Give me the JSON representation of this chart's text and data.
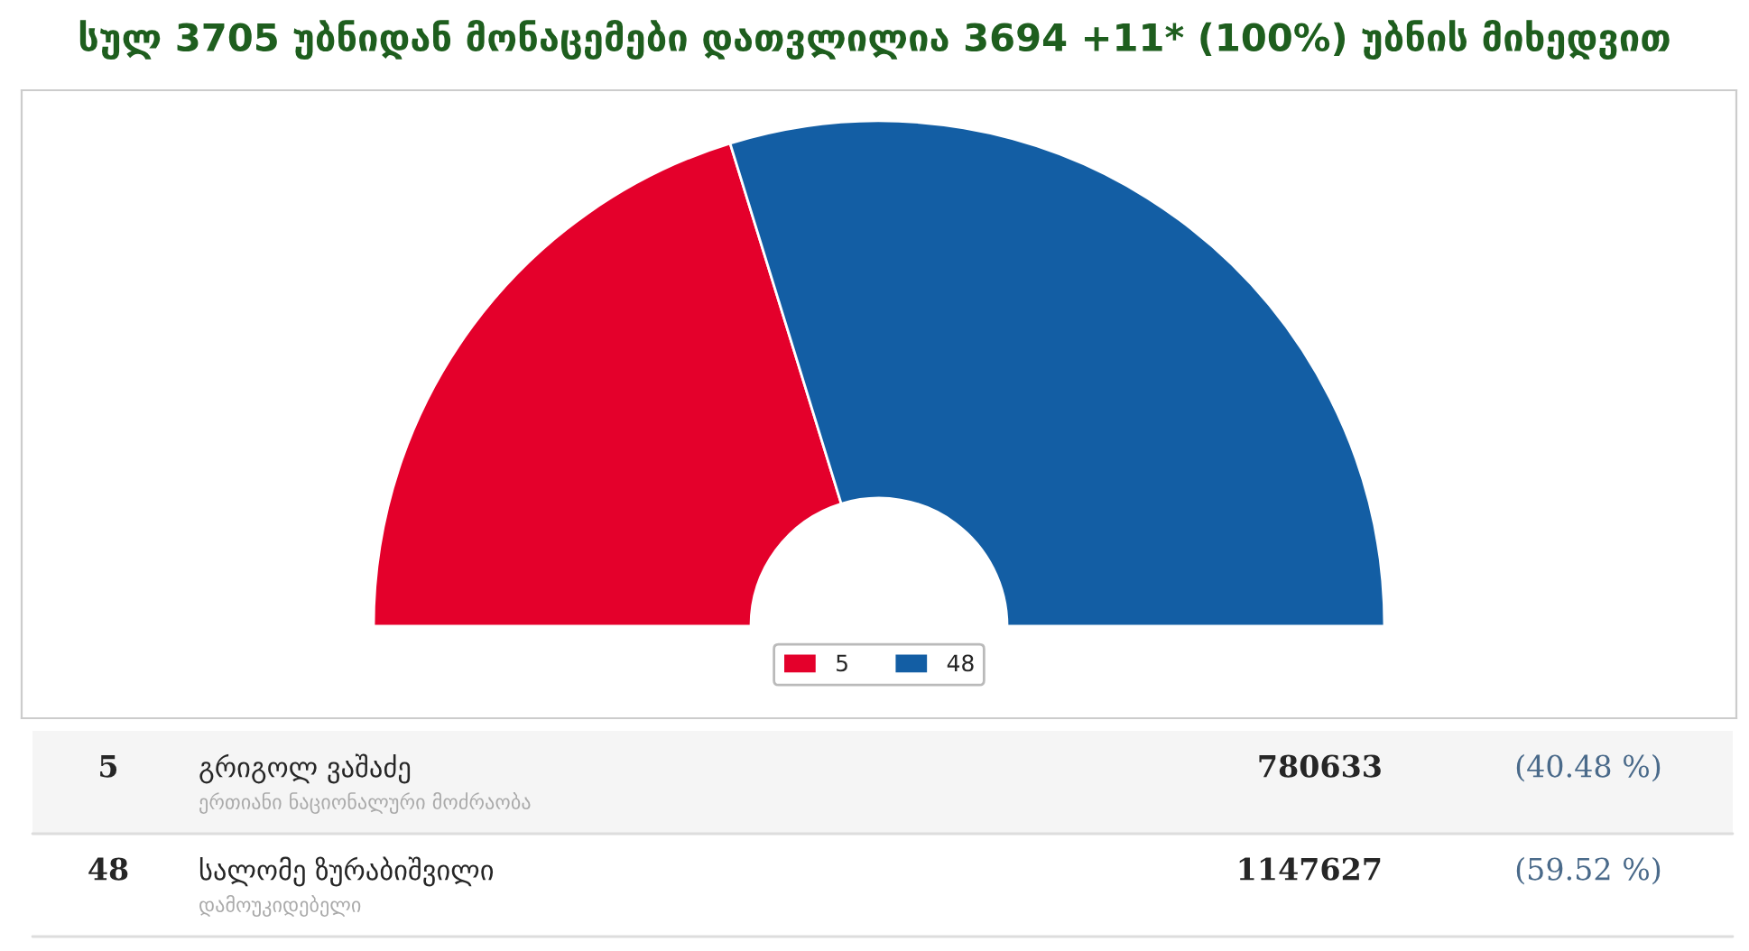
{
  "chart_data": {
    "type": "donut",
    "title": "სულ 3705 უბნიდან მონაცემები დათვლილია 3694 +11* (100%) უბნის მიხედვით",
    "categories": [
      "5",
      "48"
    ],
    "values": [
      40.48,
      59.52
    ],
    "colors": [
      "#e4002b",
      "#135ea4"
    ],
    "legend": "bottom",
    "annotations": [
      "გრიგოლ ვაშაძე",
      "ერთიანი ნაციონალური მოძრაობა",
      "780633",
      "(40.48 %)",
      "სალომე ზურაბიშვილი",
      "დამოუკიდებელი",
      "1147627",
      "(59.52 %)"
    ]
  }
}
